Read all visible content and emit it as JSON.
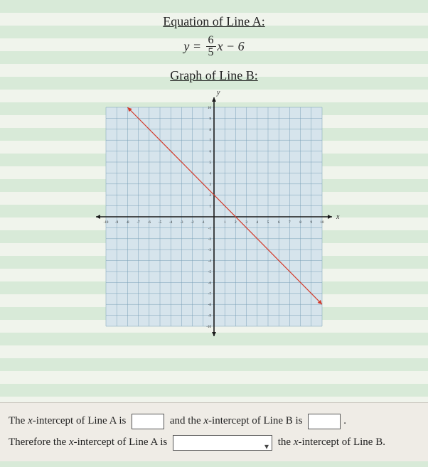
{
  "lineA": {
    "heading": "Equation of Line A:",
    "eq_y": "y",
    "eq_eq": " = ",
    "frac_num": "6",
    "frac_den": "5",
    "eq_tail": "x − 6"
  },
  "lineB": {
    "heading": "Graph of Line B:",
    "chart": {
      "type": "line",
      "xlim": [
        -10,
        10
      ],
      "ylim": [
        -10,
        10
      ],
      "xtick_step": 1,
      "ytick_step": 1,
      "axis_labels": {
        "x": "x",
        "y": "y"
      },
      "grid_color": "#7aa0b8",
      "axis_color": "#1a1a1a",
      "line_color": "#d23a2a",
      "line_width": 1.2,
      "background_color": "#d6e4ec",
      "line_points": [
        [
          -8,
          10
        ],
        [
          10,
          -8
        ]
      ],
      "arrow_color": "#1a1a1a",
      "tick_labels": {
        "x_neg": [
          "-10",
          "-9",
          "-8",
          "-7",
          "-6",
          "-5",
          "-4",
          "-3",
          "-2",
          "-1"
        ],
        "x_pos": [
          "1",
          "2",
          "3",
          "4",
          "5",
          "6",
          "7",
          "8",
          "9",
          "10"
        ],
        "y_neg": [
          "-1",
          "-2",
          "-3",
          "-4",
          "-5",
          "-6",
          "-7",
          "-8",
          "-9",
          "-10"
        ],
        "y_pos": [
          "1",
          "2",
          "3",
          "4",
          "5",
          "6",
          "7",
          "8",
          "9",
          "10"
        ]
      }
    }
  },
  "answers": {
    "line1_a": "The ",
    "line1_var": "x",
    "line1_b": "-intercept of Line A is ",
    "line1_c": " and the ",
    "line1_d": "-intercept of Line B is ",
    "period": ".",
    "line2_a": "Therefore the ",
    "line2_b": "-intercept of Line A is ",
    "line2_c": " the ",
    "line2_d": "-intercept of Line B."
  },
  "colors": {
    "paper_stripe_a": "#d8ead8",
    "paper_stripe_b": "#f0f4ec",
    "answer_panel_bg": "#efece6"
  }
}
